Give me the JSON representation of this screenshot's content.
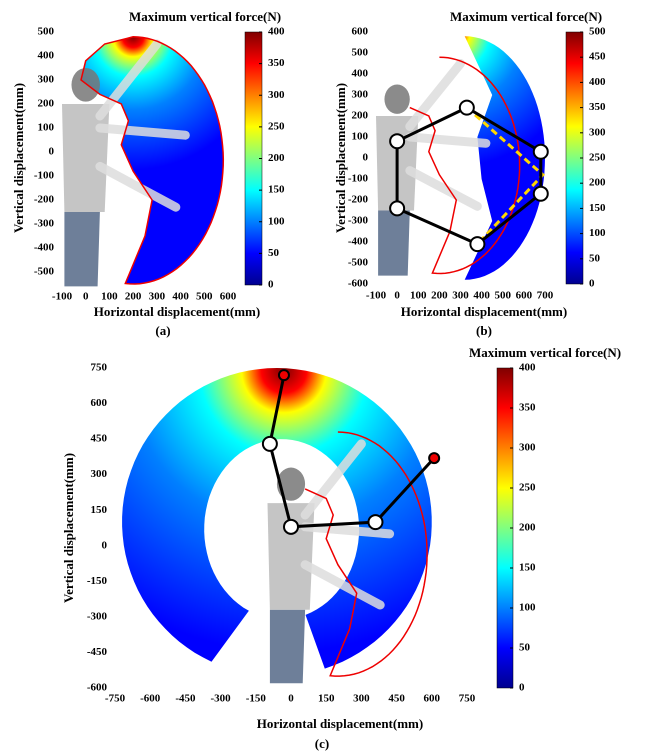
{
  "chart_data": [
    {
      "type": "heatmap",
      "title": "Maximum vertical force(N)",
      "xlabel": "Horizontal displacement(mm)",
      "ylabel": "Vertical displacement(mm)",
      "panel_label": "(a)",
      "colormap": "jet",
      "xlim": [
        -100,
        600
      ],
      "xticks": [
        -100,
        0,
        100,
        200,
        300,
        400,
        500,
        600
      ],
      "ylim": [
        -550,
        500
      ],
      "yticks": [
        -500,
        -400,
        -300,
        -200,
        -100,
        0,
        100,
        200,
        300,
        400,
        500
      ],
      "clim": [
        0,
        400
      ],
      "cticks": [
        0,
        50,
        100,
        150,
        200,
        250,
        300,
        350,
        400
      ]
    },
    {
      "type": "heatmap",
      "title": "Maximum vertical force(N)",
      "xlabel": "Horizontal displacement(mm)",
      "ylabel": "Vertical displacement(mm)",
      "panel_label": "(b)",
      "colormap": "jet",
      "xlim": [
        -100,
        700
      ],
      "xticks": [
        -100,
        0,
        100,
        200,
        300,
        400,
        500,
        600,
        700
      ],
      "ylim": [
        -600,
        600
      ],
      "yticks": [
        -600,
        -500,
        -400,
        -300,
        -200,
        -100,
        0,
        100,
        200,
        300,
        400,
        500,
        600
      ],
      "clim": [
        0,
        500
      ],
      "cticks": [
        0,
        50,
        100,
        150,
        200,
        250,
        300,
        350,
        400,
        450,
        500
      ]
    },
    {
      "type": "heatmap",
      "title": "Maximum vertical force(N)",
      "xlabel": "Horizontal displacement(mm)",
      "ylabel": "Vertical displacement(mm)",
      "panel_label": "(c)",
      "colormap": "jet",
      "xlim": [
        -750,
        750
      ],
      "xticks": [
        -750,
        -600,
        -450,
        -300,
        -150,
        0,
        150,
        300,
        450,
        600,
        750
      ],
      "ylim": [
        -600,
        750
      ],
      "yticks": [
        -600,
        -450,
        -300,
        -150,
        0,
        150,
        300,
        450,
        600,
        750
      ],
      "clim": [
        0,
        400
      ],
      "cticks": [
        0,
        50,
        100,
        150,
        200,
        250,
        300,
        350,
        400
      ]
    }
  ]
}
